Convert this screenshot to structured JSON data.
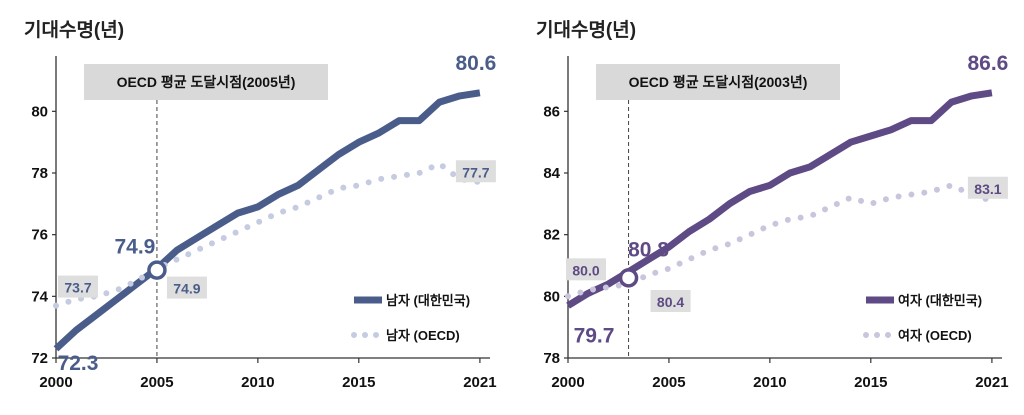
{
  "chart_data": [
    {
      "type": "line",
      "ylabel": "기대수명(년)",
      "annotation": "OECD 평균 도달시점(2005년)",
      "annotation_year": 2005,
      "x_ticks": [
        2000,
        2005,
        2010,
        2015,
        2021
      ],
      "y_ticks": [
        72,
        74,
        76,
        78,
        80
      ],
      "xlim": [
        2000,
        2021.5
      ],
      "ylim": [
        72,
        81.6
      ],
      "marker": {
        "x": 2005,
        "y": 74.85
      },
      "colors": {
        "main": "#4A5D8A",
        "oecd": "#C5CBE0",
        "label_box": "#DEDEDE"
      },
      "series": [
        {
          "name": "남자 (대한민국)",
          "style": "solid",
          "x": [
            2000,
            2001,
            2002,
            2003,
            2004,
            2005,
            2006,
            2007,
            2008,
            2009,
            2010,
            2011,
            2012,
            2013,
            2014,
            2015,
            2016,
            2017,
            2018,
            2019,
            2020,
            2021
          ],
          "y": [
            72.3,
            72.9,
            73.4,
            73.9,
            74.4,
            74.9,
            75.5,
            75.9,
            76.3,
            76.7,
            76.9,
            77.3,
            77.6,
            78.1,
            78.6,
            79.0,
            79.3,
            79.7,
            79.7,
            80.3,
            80.5,
            80.6
          ]
        },
        {
          "name": "남자 (OECD)",
          "style": "dotted",
          "x": [
            2000,
            2001,
            2002,
            2003,
            2004,
            2005,
            2006,
            2007,
            2008,
            2009,
            2010,
            2011,
            2012,
            2013,
            2014,
            2015,
            2016,
            2017,
            2018,
            2019,
            2020,
            2021
          ],
          "y": [
            73.7,
            73.9,
            74.0,
            74.2,
            74.5,
            74.9,
            75.2,
            75.5,
            75.8,
            76.1,
            76.4,
            76.7,
            76.9,
            77.2,
            77.5,
            77.6,
            77.8,
            77.9,
            78.0,
            78.3,
            77.8,
            77.7
          ]
        }
      ],
      "data_labels": [
        {
          "text": "80.6",
          "series": 0,
          "x": 2021,
          "size": "big",
          "boxed": false
        },
        {
          "text": "77.7",
          "series": 1,
          "x": 2021,
          "size": "small",
          "boxed": true
        },
        {
          "text": "74.9",
          "series": 0,
          "x": 2005,
          "size": "big",
          "boxed": false
        },
        {
          "text": "74.9",
          "series": 1,
          "x": 2005,
          "size": "small",
          "boxed": true
        },
        {
          "text": "73.7",
          "series": 1,
          "x": 2000,
          "size": "small",
          "boxed": true
        },
        {
          "text": "72.3",
          "series": 0,
          "x": 2000,
          "size": "big",
          "boxed": false
        }
      ]
    },
    {
      "type": "line",
      "ylabel": "기대수명(년)",
      "annotation": "OECD 평균 도달시점(2003년)",
      "annotation_year": 2003,
      "x_ticks": [
        2000,
        2005,
        2010,
        2015,
        2021
      ],
      "y_ticks": [
        78,
        80,
        82,
        84,
        86
      ],
      "xlim": [
        2000,
        2021.5
      ],
      "ylim": [
        78,
        87.6
      ],
      "marker": {
        "x": 2003,
        "y": 80.6
      },
      "colors": {
        "main": "#5E4A84",
        "oecd": "#C9C5DD",
        "label_box": "#DEDEDE"
      },
      "series": [
        {
          "name": "여자 (대한민국)",
          "style": "solid",
          "x": [
            2000,
            2001,
            2002,
            2003,
            2004,
            2005,
            2006,
            2007,
            2008,
            2009,
            2010,
            2011,
            2012,
            2013,
            2014,
            2015,
            2016,
            2017,
            2018,
            2019,
            2020,
            2021
          ],
          "y": [
            79.7,
            80.1,
            80.4,
            80.8,
            81.2,
            81.6,
            82.1,
            82.5,
            83.0,
            83.4,
            83.6,
            84.0,
            84.2,
            84.6,
            85.0,
            85.2,
            85.4,
            85.7,
            85.7,
            86.3,
            86.5,
            86.6
          ]
        },
        {
          "name": "여자 (OECD)",
          "style": "dotted",
          "x": [
            2000,
            2001,
            2002,
            2003,
            2004,
            2005,
            2006,
            2007,
            2008,
            2009,
            2010,
            2011,
            2012,
            2013,
            2014,
            2015,
            2016,
            2017,
            2018,
            2019,
            2020,
            2021
          ],
          "y": [
            80.0,
            80.2,
            80.3,
            80.4,
            80.7,
            80.9,
            81.2,
            81.5,
            81.7,
            82.0,
            82.3,
            82.5,
            82.6,
            82.9,
            83.2,
            83.0,
            83.2,
            83.3,
            83.4,
            83.6,
            83.3,
            83.1
          ]
        }
      ],
      "data_labels": [
        {
          "text": "86.6",
          "series": 0,
          "x": 2021,
          "size": "big",
          "boxed": false
        },
        {
          "text": "83.1",
          "series": 1,
          "x": 2021,
          "size": "small",
          "boxed": true
        },
        {
          "text": "80.8",
          "series": 0,
          "x": 2003,
          "size": "big",
          "boxed": false
        },
        {
          "text": "80.4",
          "series": 1,
          "x": 2003,
          "size": "small",
          "boxed": true
        },
        {
          "text": "80.0",
          "series": 1,
          "x": 2000,
          "size": "small",
          "boxed": true
        },
        {
          "text": "79.7",
          "series": 0,
          "x": 2000,
          "size": "big",
          "boxed": false
        }
      ]
    }
  ]
}
